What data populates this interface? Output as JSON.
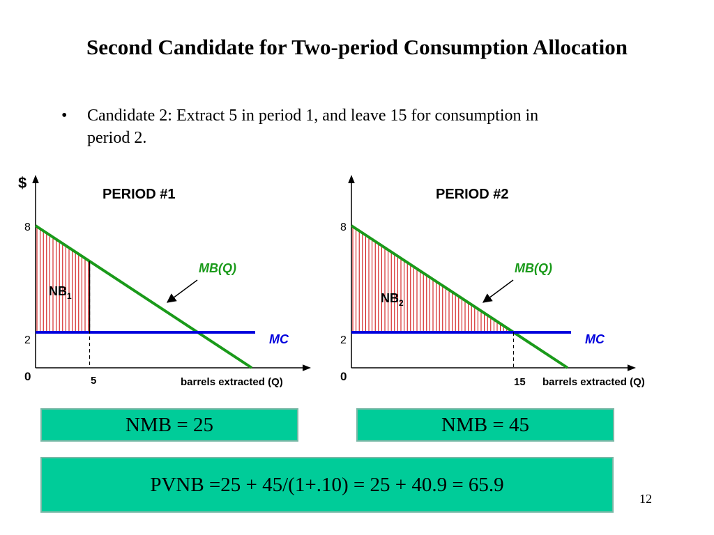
{
  "title": "Second Candidate for Two-period Consumption Allocation",
  "bullet": {
    "marker": "•",
    "line1": "Candidate 2: Extract 5 in period 1, and leave 15 for consumption in",
    "line2": "period 2."
  },
  "colors": {
    "mb_line": "#1a9a1a",
    "mc_line": "#0000dd",
    "hatch": "#cc0000",
    "box_fill": "#00cc99"
  },
  "panels": [
    {
      "y_axis_label": "$",
      "title": "PERIOD #1",
      "y_tick_high": "8",
      "y_tick_low": "2",
      "origin": "0",
      "q_tick": "5",
      "mb_label": "MB(Q)",
      "mc_label": "MC",
      "nb_main": "NB",
      "nb_sub": "1",
      "x_axis_label": "barrels extracted (Q)",
      "mb": {
        "intercept": 8,
        "slope": -0.4
      },
      "mc": 2,
      "q": 5,
      "nmb": "NMB = 25"
    },
    {
      "title": "PERIOD #2",
      "y_tick_high": "8",
      "y_tick_low": "2",
      "origin": "0",
      "q_tick": "15",
      "mb_label": "MB(Q)",
      "mc_label": "MC",
      "nb_main": "NB",
      "nb_sub": "2",
      "x_axis_label": "barrels extracted (Q)",
      "mb": {
        "intercept": 8,
        "slope": -0.4
      },
      "mc": 2,
      "q": 15,
      "nmb": "NMB = 45"
    }
  ],
  "pvnb": "PVNB =25 + 45/(1+.10) = 25 + 40.9 = 65.9",
  "page_number": "12"
}
